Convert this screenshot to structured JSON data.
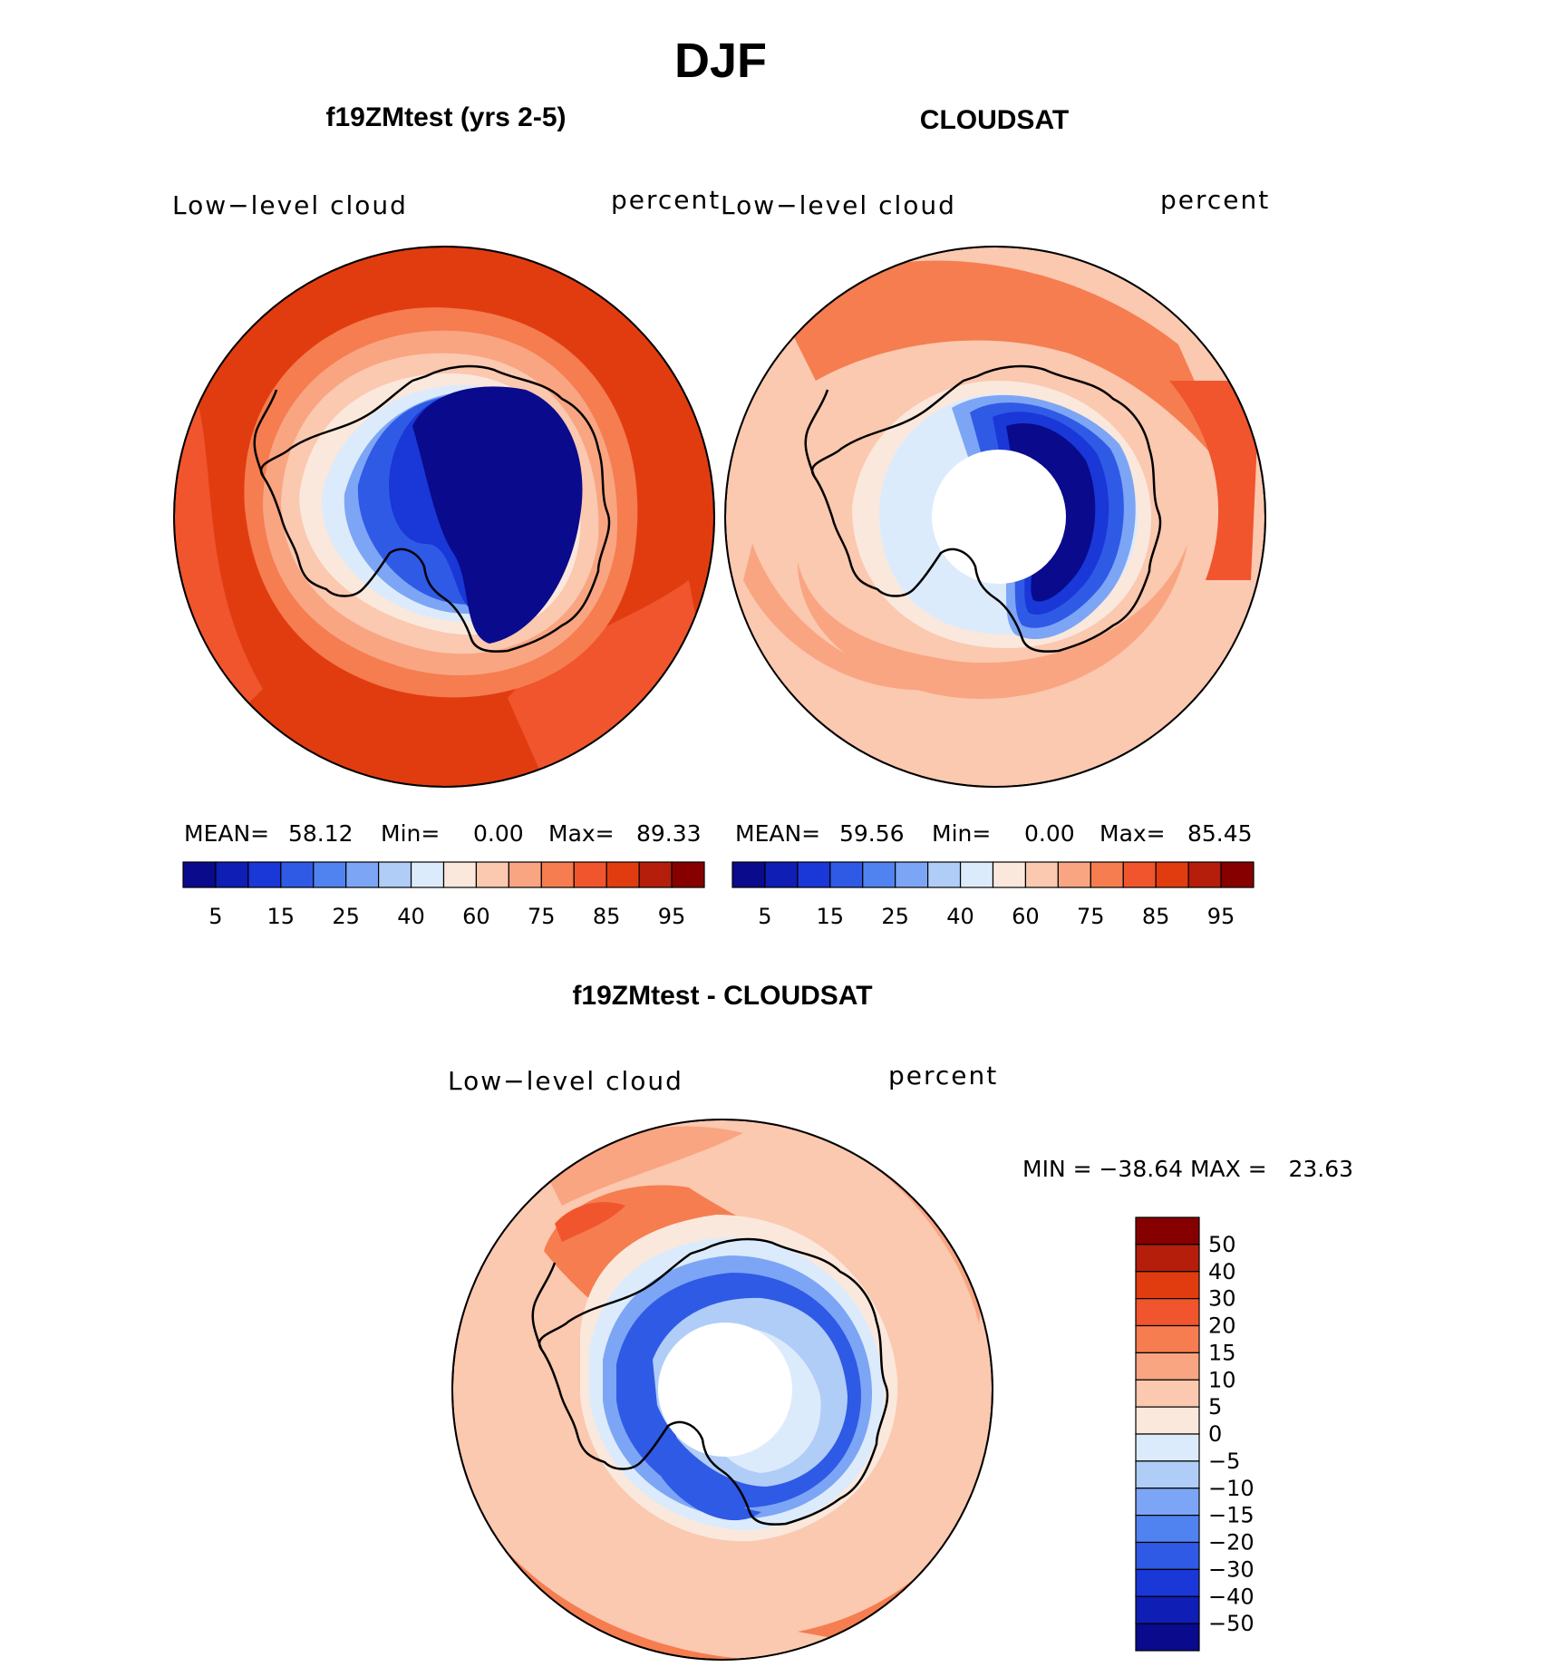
{
  "season": "DJF",
  "colors": {
    "model_obs_scale": [
      "#0a0a8c",
      "#0f1eb4",
      "#1a37d7",
      "#2f5ae6",
      "#5082f0",
      "#7da5f5",
      "#b0cdf8",
      "#dcebfb",
      "#fbe8dc",
      "#fbc8b0",
      "#f9a582",
      "#f57d50",
      "#f0552d",
      "#e13c10",
      "#b41e0a",
      "#870000"
    ],
    "diff_scale": [
      "#0a0a8c",
      "#0f1eb4",
      "#1a37d7",
      "#2f5ae6",
      "#5082f0",
      "#7da5f5",
      "#b0cdf8",
      "#dcebfb",
      "#fbe8dc",
      "#fbc8b0",
      "#f9a582",
      "#f57d50",
      "#f0552d",
      "#e13c10",
      "#b41e0a",
      "#870000"
    ],
    "coastline": "#000000",
    "pole_hole": "#ffffff"
  },
  "panels": [
    {
      "title": "f19ZMtest (yrs 2-5)",
      "variable": "Low−level cloud",
      "units": "percent",
      "stats": {
        "mean_label": "MEAN=",
        "mean": "58.12",
        "min_label": "Min=",
        "min": "0.00",
        "max_label": "Max=",
        "max": "89.33"
      },
      "colorbar_labels": [
        "5",
        "15",
        "25",
        "40",
        "60",
        "75",
        "85",
        "95"
      ],
      "pole_hole": false
    },
    {
      "title": "CLOUDSAT",
      "variable": "Low−level cloud",
      "units": "percent",
      "stats": {
        "mean_label": "MEAN=",
        "mean": "59.56",
        "min_label": "Min=",
        "min": "0.00",
        "max_label": "Max=",
        "max": "85.45"
      },
      "colorbar_labels": [
        "5",
        "15",
        "25",
        "40",
        "60",
        "75",
        "85",
        "95"
      ],
      "pole_hole": true
    }
  ],
  "difference": {
    "title": "f19ZMtest - CLOUDSAT",
    "variable": "Low−level cloud",
    "units": "percent",
    "minmax_text": "MIN = −38.64 MAX =   23.63",
    "colorbar_labels": [
      "50",
      "40",
      "30",
      "20",
      "15",
      "10",
      "5",
      "0",
      "−5",
      "−10",
      "−15",
      "−20",
      "−30",
      "−40",
      "−50"
    ],
    "pole_hole": true
  }
}
